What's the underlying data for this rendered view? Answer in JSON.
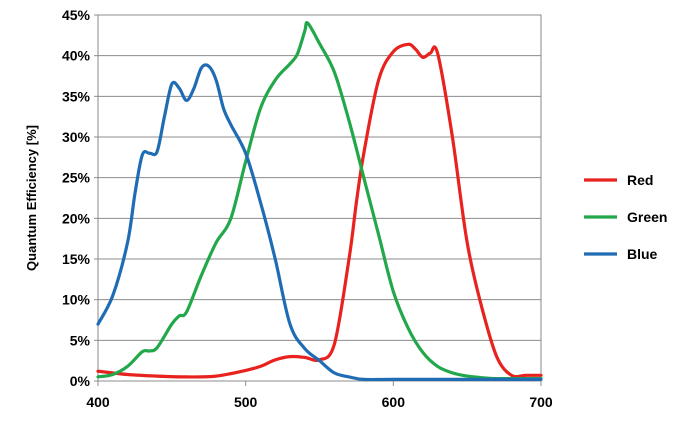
{
  "chart_data": {
    "type": "line",
    "title": "",
    "xlabel": "",
    "ylabel": "Quantum Efficiency [%]",
    "xlim": [
      400,
      700
    ],
    "ylim": [
      0,
      45
    ],
    "x_ticks": [
      "400",
      "500",
      "600",
      "700"
    ],
    "x_tick_values": [
      400,
      500,
      600,
      700
    ],
    "y_ticks": [
      "0%",
      "5%",
      "10%",
      "15%",
      "20%",
      "25%",
      "30%",
      "35%",
      "40%",
      "45%"
    ],
    "y_tick_values": [
      0,
      5,
      10,
      15,
      20,
      25,
      30,
      35,
      40,
      45
    ],
    "grid": "horizontal",
    "legend_position": "right",
    "series": [
      {
        "name": "Red",
        "color": "#e8221e",
        "x": [
          400,
          420,
          440,
          460,
          480,
          500,
          510,
          520,
          530,
          540,
          550,
          560,
          570,
          575,
          580,
          590,
          600,
          610,
          615,
          620,
          625,
          630,
          640,
          650,
          660,
          670,
          680,
          690,
          700
        ],
        "y": [
          1.2,
          0.8,
          0.6,
          0.5,
          0.6,
          1.3,
          1.8,
          2.6,
          3.0,
          2.9,
          2.6,
          4.5,
          15,
          22,
          28,
          37,
          40.5,
          41.4,
          40.8,
          39.8,
          40.3,
          40.3,
          30,
          17,
          9,
          3,
          0.7,
          0.7,
          0.7
        ]
      },
      {
        "name": "Green",
        "color": "#22a84a",
        "x": [
          400,
          410,
          420,
          430,
          435,
          440,
          450,
          455,
          460,
          470,
          480,
          490,
          500,
          510,
          520,
          530,
          535,
          540,
          542,
          550,
          560,
          570,
          580,
          590,
          600,
          610,
          620,
          630,
          640,
          650,
          660,
          670,
          680,
          690,
          700
        ],
        "y": [
          0.5,
          0.8,
          1.8,
          3.6,
          3.7,
          4.1,
          7.0,
          8.0,
          8.5,
          13.0,
          17.0,
          20.0,
          27.0,
          33.5,
          37.0,
          39.0,
          40.2,
          43.0,
          44.0,
          41.5,
          38.0,
          32.0,
          25.0,
          18.0,
          11.0,
          6.5,
          3.5,
          1.8,
          1.0,
          0.6,
          0.4,
          0.3,
          0.3,
          0.3,
          0.3
        ]
      },
      {
        "name": "Blue",
        "color": "#1f6cb4",
        "x": [
          400,
          410,
          420,
          425,
          430,
          435,
          440,
          445,
          450,
          455,
          460,
          465,
          470,
          475,
          480,
          485,
          490,
          500,
          510,
          520,
          530,
          540,
          550,
          560,
          570,
          580,
          600,
          650,
          700
        ],
        "y": [
          7.0,
          10.5,
          17.0,
          23.0,
          27.8,
          28.0,
          28.2,
          32.5,
          36.5,
          36.0,
          34.5,
          36.0,
          38.5,
          38.7,
          37.0,
          33.5,
          31.5,
          28.0,
          22.0,
          15.0,
          7.0,
          4.0,
          2.5,
          1.0,
          0.5,
          0.2,
          0.2,
          0.2,
          0.2
        ]
      }
    ]
  }
}
